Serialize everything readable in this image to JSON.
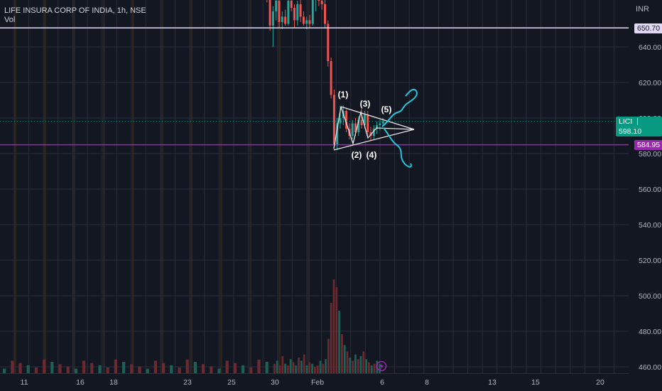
{
  "header": {
    "symbol_title": "LIFE INSURA CORP OF INDIA, 1h, NSE",
    "volume_label": "Vol",
    "currency": "INR"
  },
  "price_labels": {
    "resistance": {
      "value": "650.70",
      "color": "#e1d8f5"
    },
    "ticker": {
      "symbol": "LICI",
      "value": "598.10",
      "color": "#089981"
    },
    "support": {
      "value": "584.95",
      "color": "#9c27b0"
    }
  },
  "annotations": [
    "(1)",
    "(2)",
    "(3)",
    "(4)",
    "(5)"
  ],
  "chart_data": {
    "type": "candlestick",
    "yticks": [
      460,
      480,
      500,
      520,
      540,
      560,
      580,
      600,
      620,
      640
    ],
    "ylim": [
      455,
      675
    ],
    "xticks": [
      "11",
      "16",
      "18",
      "23",
      "25",
      "30",
      "Feb",
      "6",
      "8",
      "13",
      "15",
      "20"
    ],
    "horizontal_lines": [
      650.7,
      584.95
    ],
    "candles": [
      {
        "o": 672,
        "h": 675,
        "l": 668,
        "c": 670
      },
      {
        "o": 670,
        "h": 673,
        "l": 665,
        "c": 668
      },
      {
        "o": 668,
        "h": 671,
        "l": 649,
        "c": 652
      },
      {
        "o": 652,
        "h": 663,
        "l": 640,
        "c": 660
      },
      {
        "o": 660,
        "h": 668,
        "l": 655,
        "c": 666
      },
      {
        "o": 666,
        "h": 668,
        "l": 651,
        "c": 654
      },
      {
        "o": 654,
        "h": 660,
        "l": 650,
        "c": 657
      },
      {
        "o": 657,
        "h": 661,
        "l": 652,
        "c": 653
      },
      {
        "o": 653,
        "h": 668,
        "l": 652,
        "c": 666
      },
      {
        "o": 666,
        "h": 669,
        "l": 660,
        "c": 662
      },
      {
        "o": 662,
        "h": 664,
        "l": 651,
        "c": 655
      },
      {
        "o": 655,
        "h": 666,
        "l": 652,
        "c": 664
      },
      {
        "o": 664,
        "h": 667,
        "l": 654,
        "c": 657
      },
      {
        "o": 657,
        "h": 660,
        "l": 652,
        "c": 653
      },
      {
        "o": 653,
        "h": 657,
        "l": 650,
        "c": 655
      },
      {
        "o": 655,
        "h": 658,
        "l": 651,
        "c": 653
      },
      {
        "o": 653,
        "h": 669,
        "l": 652,
        "c": 667
      },
      {
        "o": 667,
        "h": 671,
        "l": 660,
        "c": 670
      },
      {
        "o": 670,
        "h": 672,
        "l": 663,
        "c": 666
      },
      {
        "o": 666,
        "h": 670,
        "l": 661,
        "c": 664
      },
      {
        "o": 664,
        "h": 667,
        "l": 651,
        "c": 653
      },
      {
        "o": 653,
        "h": 655,
        "l": 629,
        "c": 632
      },
      {
        "o": 632,
        "h": 634,
        "l": 611,
        "c": 613
      },
      {
        "o": 613,
        "h": 616,
        "l": 582,
        "c": 585
      },
      {
        "o": 585,
        "h": 600,
        "l": 582,
        "c": 597
      },
      {
        "o": 597,
        "h": 607,
        "l": 594,
        "c": 600
      },
      {
        "o": 600,
        "h": 607,
        "l": 596,
        "c": 604
      },
      {
        "o": 604,
        "h": 605,
        "l": 592,
        "c": 594
      },
      {
        "o": 594,
        "h": 597,
        "l": 588,
        "c": 590
      },
      {
        "o": 590,
        "h": 599,
        "l": 588,
        "c": 597
      },
      {
        "o": 597,
        "h": 600,
        "l": 590,
        "c": 592
      },
      {
        "o": 592,
        "h": 601,
        "l": 590,
        "c": 599
      },
      {
        "o": 599,
        "h": 605,
        "l": 594,
        "c": 596
      },
      {
        "o": 596,
        "h": 604,
        "l": 594,
        "c": 602
      },
      {
        "o": 602,
        "h": 604,
        "l": 590,
        "c": 592
      },
      {
        "o": 592,
        "h": 595,
        "l": 587,
        "c": 590
      },
      {
        "o": 590,
        "h": 596,
        "l": 588,
        "c": 594
      },
      {
        "o": 594,
        "h": 598,
        "l": 591,
        "c": 596
      },
      {
        "o": 596,
        "h": 599,
        "l": 593,
        "c": 597
      },
      {
        "o": 597,
        "h": 600,
        "l": 595,
        "c": 598.1
      }
    ],
    "volume": [
      {
        "v": 6,
        "up": false
      },
      {
        "v": 8,
        "up": true
      },
      {
        "v": 5,
        "up": false
      },
      {
        "v": 11,
        "up": false
      },
      {
        "v": 6,
        "up": true
      },
      {
        "v": 5,
        "up": false
      },
      {
        "v": 9,
        "up": true
      },
      {
        "v": 7,
        "up": false
      },
      {
        "v": 5,
        "up": true
      },
      {
        "v": 10,
        "up": false
      },
      {
        "v": 8,
        "up": true
      },
      {
        "v": 12,
        "up": false
      },
      {
        "v": 5,
        "up": true
      },
      {
        "v": 7,
        "up": false
      },
      {
        "v": 6,
        "up": true
      },
      {
        "v": 4,
        "up": false
      },
      {
        "v": 5,
        "up": false
      },
      {
        "v": 8,
        "up": true
      },
      {
        "v": 6,
        "up": false
      },
      {
        "v": 9,
        "up": true
      },
      {
        "v": 22,
        "up": false
      },
      {
        "v": 45,
        "up": false
      },
      {
        "v": 60,
        "up": false
      },
      {
        "v": 55,
        "up": false
      },
      {
        "v": 40,
        "up": true
      },
      {
        "v": 25,
        "up": false
      },
      {
        "v": 18,
        "up": true
      },
      {
        "v": 14,
        "up": false
      },
      {
        "v": 10,
        "up": true
      },
      {
        "v": 8,
        "up": false
      },
      {
        "v": 12,
        "up": true
      },
      {
        "v": 9,
        "up": false
      },
      {
        "v": 11,
        "up": true
      },
      {
        "v": 14,
        "up": false
      },
      {
        "v": 9,
        "up": true
      },
      {
        "v": 7,
        "up": false
      },
      {
        "v": 5,
        "up": true
      },
      {
        "v": 6,
        "up": false
      },
      {
        "v": 8,
        "up": true
      },
      {
        "v": 6,
        "up": true
      }
    ]
  }
}
